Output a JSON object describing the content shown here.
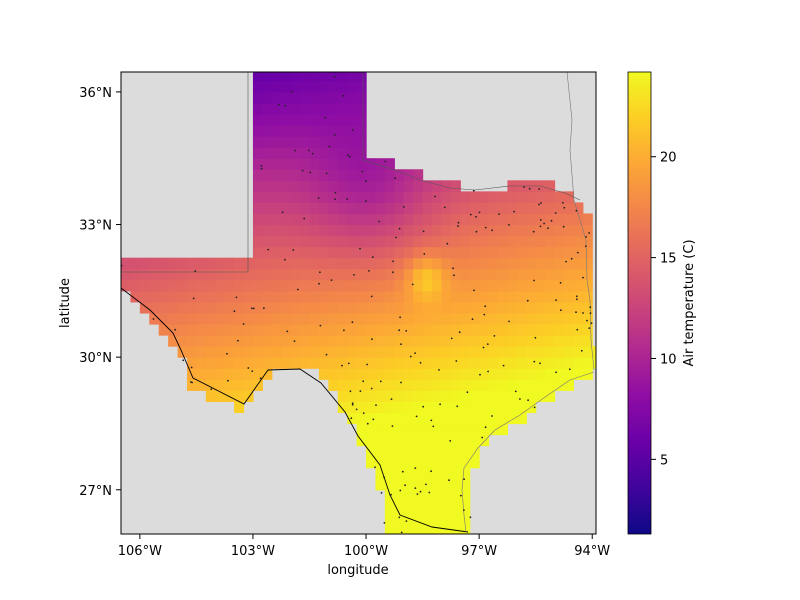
{
  "chart_data": {
    "type": "heatmap",
    "title": "",
    "xlabel": "longitude",
    "ylabel": "latitude",
    "colorbar_label": "Air temperature (C)",
    "colormap": "plasma",
    "xlim": [
      -106.5,
      -93.9
    ],
    "ylim": [
      26.0,
      36.45
    ],
    "xticks": [
      {
        "value": -106,
        "label": "106°W"
      },
      {
        "value": -103,
        "label": "103°W"
      },
      {
        "value": -100,
        "label": "100°W"
      },
      {
        "value": -97,
        "label": "97°W"
      },
      {
        "value": -94,
        "label": "94°W"
      }
    ],
    "yticks": [
      {
        "value": 27,
        "label": "27°N"
      },
      {
        "value": 30,
        "label": "30°N"
      },
      {
        "value": 33,
        "label": "33°N"
      },
      {
        "value": 36,
        "label": "36°N"
      }
    ],
    "colorbar_range": [
      1.3,
      24.2
    ],
    "colorbar_ticks": [
      {
        "value": 5,
        "label": "5"
      },
      {
        "value": 10,
        "label": "10"
      },
      {
        "value": 15,
        "label": "15"
      },
      {
        "value": 20,
        "label": "20"
      }
    ],
    "background_color": "#dcdcdc",
    "grid": false
  }
}
